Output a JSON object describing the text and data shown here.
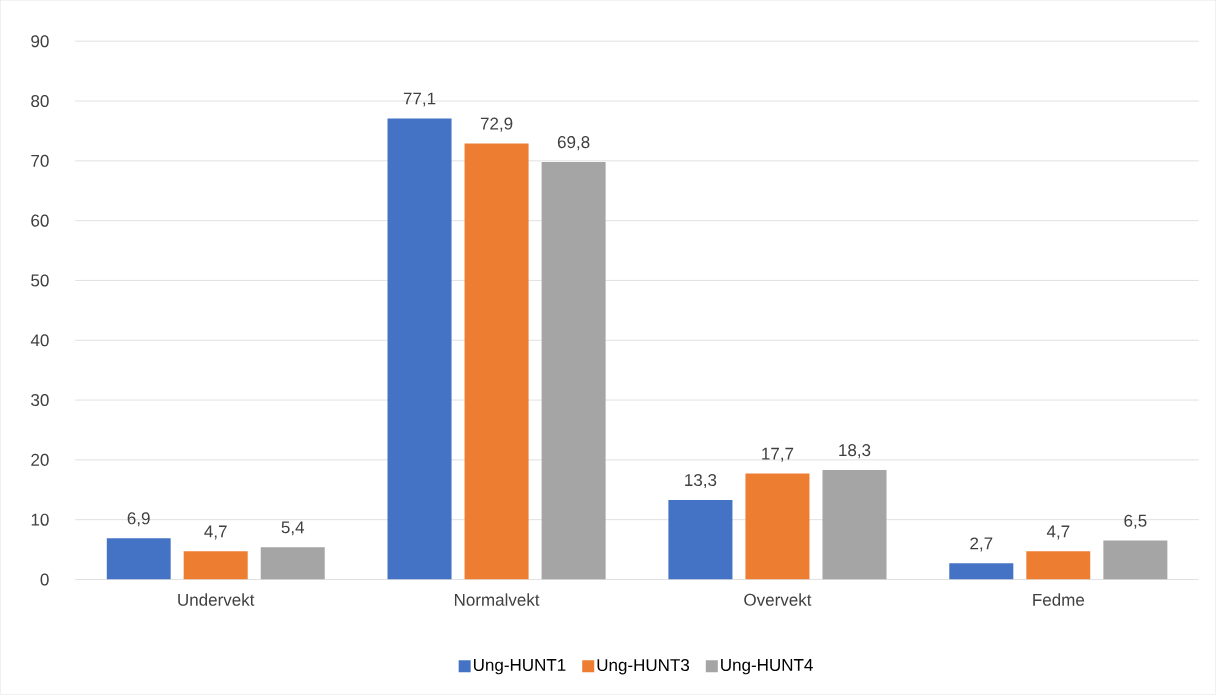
{
  "chart_data": {
    "type": "bar",
    "categories": [
      "Undervekt",
      "Normalvekt",
      "Overvekt",
      "Fedme"
    ],
    "series": [
      {
        "name": "Ung-HUNT1",
        "color": "#4472c4",
        "values": [
          6.9,
          77.1,
          13.3,
          2.7
        ],
        "value_labels": [
          "6,9",
          "77,1",
          "13,3",
          "2,7"
        ]
      },
      {
        "name": "Ung-HUNT3",
        "color": "#ed7d31",
        "values": [
          4.7,
          72.9,
          17.7,
          4.7
        ],
        "value_labels": [
          "4,7",
          "72,9",
          "17,7",
          "4,7"
        ]
      },
      {
        "name": "Ung-HUNT4",
        "color": "#a5a5a5",
        "values": [
          5.4,
          69.8,
          18.3,
          6.5
        ],
        "value_labels": [
          "5,4",
          "69,8",
          "18,3",
          "6,5"
        ]
      }
    ],
    "ylim": [
      0,
      90
    ],
    "yticks": [
      0,
      10,
      20,
      30,
      40,
      50,
      60,
      70,
      80,
      90
    ],
    "grid": "y",
    "legend": "bottom"
  }
}
